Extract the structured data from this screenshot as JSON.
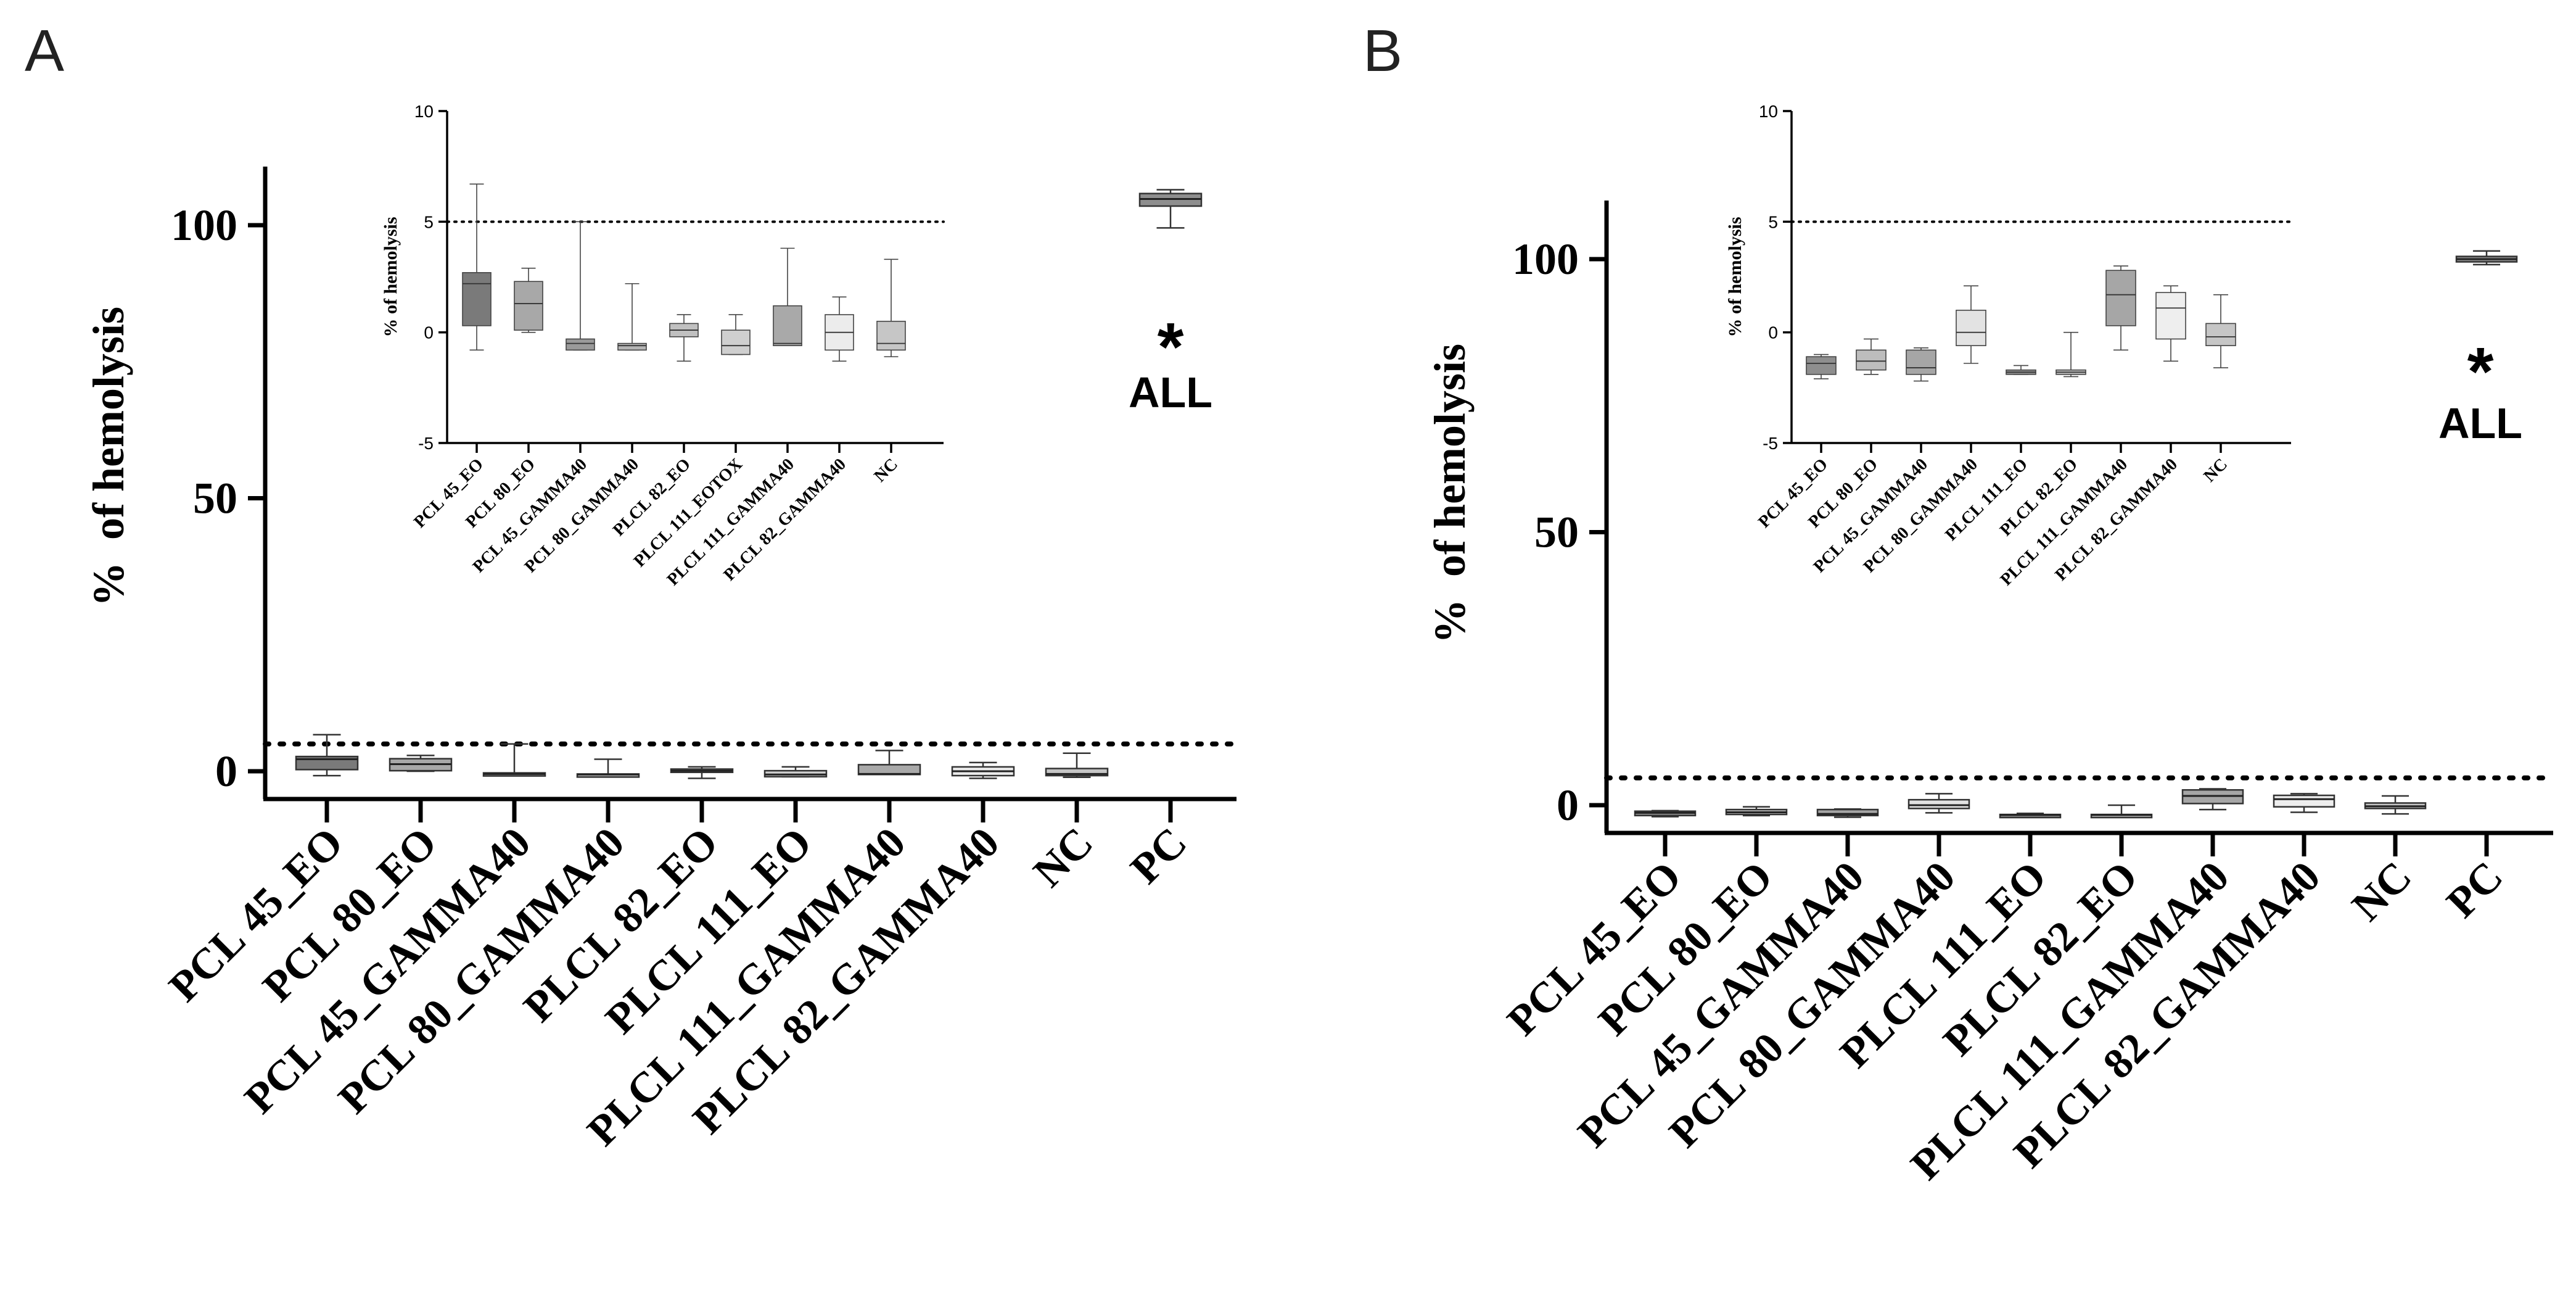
{
  "figure": {
    "panels": [
      {
        "letter": "A"
      },
      {
        "letter": "B"
      }
    ]
  },
  "chart_data": [
    {
      "panel": "A",
      "type": "box",
      "ylabel": "%  of hemolysis",
      "ylim": [
        -5,
        110
      ],
      "yticks": [
        0,
        50,
        100
      ],
      "threshold": 5,
      "categories": [
        "PCL 45_EO",
        "PCL 80_EO",
        "PCL 45_GAMMA40",
        "PCL 80_GAMMA40",
        "PLCL 82_EO",
        "PLCL 111_EO",
        "PLCL 111_GAMMA40",
        "PLCL 82_GAMMA40",
        "NC",
        "PC"
      ],
      "boxes": [
        {
          "min": -0.8,
          "q1": 0.3,
          "median": 2.2,
          "q3": 2.7,
          "max": 6.7,
          "fill": "#7a7a7a"
        },
        {
          "min": 0.0,
          "q1": 0.1,
          "median": 1.3,
          "q3": 2.3,
          "max": 2.9,
          "fill": "#a8a8a8"
        },
        {
          "min": -0.8,
          "q1": -0.8,
          "median": -0.5,
          "q3": -0.3,
          "max": 5.0,
          "fill": "#9a9a9a"
        },
        {
          "min": -0.8,
          "q1": -0.8,
          "median": -0.6,
          "q3": -0.5,
          "max": 2.2,
          "fill": "#b5b5b5"
        },
        {
          "min": -1.3,
          "q1": -0.2,
          "median": 0.1,
          "q3": 0.4,
          "max": 0.8,
          "fill": "#c0c0c0"
        },
        {
          "min": -1.0,
          "q1": -1.0,
          "median": -0.6,
          "q3": 0.1,
          "max": 0.8,
          "fill": "#cfcfcf"
        },
        {
          "min": -0.6,
          "q1": -0.6,
          "median": -0.5,
          "q3": 1.2,
          "max": 3.8,
          "fill": "#a9a9a9"
        },
        {
          "min": -1.3,
          "q1": -0.8,
          "median": 0.0,
          "q3": 0.8,
          "max": 1.6,
          "fill": "#ececec"
        },
        {
          "min": -1.1,
          "q1": -0.8,
          "median": -0.5,
          "q3": 0.5,
          "max": 3.3,
          "fill": "#c6c6c6"
        },
        {
          "min": 99.5,
          "q1": 103.5,
          "median": 104.8,
          "q3": 105.8,
          "max": 106.5,
          "fill": "#8e8e8e"
        }
      ],
      "significance": {
        "symbol": "*",
        "label": "ALL"
      },
      "inset": {
        "ylabel": "% of hemolysis",
        "ylim": [
          -5,
          10
        ],
        "yticks": [
          -5,
          0,
          5,
          10
        ],
        "threshold": 5,
        "categories": [
          "PCL 45_EO",
          "PCL 80_EO",
          "PCL 45_GAMMA40",
          "PCL 80_GAMMA40",
          "PLCL 82_EO",
          "PLCL 111_EOTOX",
          "PLCL 111_GAMMA40",
          "PLCL 82_GAMMA40",
          "NC"
        ]
      }
    },
    {
      "panel": "B",
      "type": "box",
      "ylabel": "%  of hemolysis",
      "ylim": [
        -5,
        110
      ],
      "yticks": [
        0,
        50,
        100
      ],
      "threshold": 5,
      "categories": [
        "PCL 45_EO",
        "PCL 80_EO",
        "PCL 45_GAMMA40",
        "PCL 80_GAMMA40",
        "PLCL 111_EO",
        "PLCL 82_EO",
        "PLCL 111_GAMMA40",
        "PLCL 82_GAMMA40",
        "NC",
        "PC"
      ],
      "boxes": [
        {
          "min": -2.1,
          "q1": -1.9,
          "median": -1.4,
          "q3": -1.1,
          "max": -1.0,
          "fill": "#8e8e8e"
        },
        {
          "min": -1.9,
          "q1": -1.7,
          "median": -1.3,
          "q3": -0.8,
          "max": -0.3,
          "fill": "#bdbdbd"
        },
        {
          "min": -2.2,
          "q1": -1.9,
          "median": -1.6,
          "q3": -0.8,
          "max": -0.7,
          "fill": "#a6a6a6"
        },
        {
          "min": -1.4,
          "q1": -0.6,
          "median": 0.0,
          "q3": 1.0,
          "max": 2.1,
          "fill": "#e3e3e3"
        },
        {
          "min": -1.9,
          "q1": -1.9,
          "median": -1.8,
          "q3": -1.7,
          "max": -1.5,
          "fill": "#8e8e8e"
        },
        {
          "min": -2.0,
          "q1": -1.9,
          "median": -1.8,
          "q3": -1.7,
          "max": 0.0,
          "fill": "#bdbdbd"
        },
        {
          "min": -0.8,
          "q1": 0.3,
          "median": 1.7,
          "q3": 2.8,
          "max": 3.0,
          "fill": "#a6a6a6"
        },
        {
          "min": -1.3,
          "q1": -0.3,
          "median": 1.1,
          "q3": 1.8,
          "max": 2.1,
          "fill": "#eeeeee"
        },
        {
          "min": -1.6,
          "q1": -0.6,
          "median": -0.2,
          "q3": 0.4,
          "max": 1.7,
          "fill": "#c6c6c6"
        },
        {
          "min": 99.0,
          "q1": 99.5,
          "median": 100.0,
          "q3": 100.5,
          "max": 101.5,
          "fill": "#8e8e8e"
        }
      ],
      "significance": {
        "symbol": "*",
        "label": "ALL"
      },
      "inset": {
        "ylabel": "% of hemolysis",
        "ylim": [
          -5,
          10
        ],
        "yticks": [
          -5,
          0,
          5,
          10
        ],
        "threshold": 5,
        "categories": [
          "PCL 45_EO",
          "PCL 80_EO",
          "PCL 45_GAMMA40",
          "PCL 80_GAMMA40",
          "PLCL 111_EO",
          "PLCL 82_EO",
          "PLCL 111_GAMMA40",
          "PLCL 82_GAMMA40",
          "NC"
        ]
      }
    }
  ]
}
